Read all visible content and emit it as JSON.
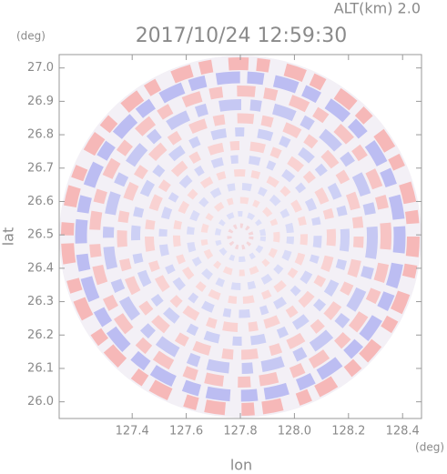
{
  "chart_data": {
    "type": "radar-ppi",
    "title": "2017/10/24 12:59:30",
    "annotation": "ALT(km) 2.0",
    "x_label": "lon",
    "x_unit": "(deg)",
    "y_label": "lat",
    "y_unit": "(deg)",
    "xlim": [
      127.13,
      128.47
    ],
    "xticks": [
      127.4,
      127.6,
      127.8,
      {
        "value": 128.0,
        "label": "128.0"
      },
      128.2,
      128.4
    ],
    "ylim": [
      25.95,
      27.04
    ],
    "yticks": [
      {
        "value": 26.0,
        "label": "26.0"
      },
      26.1,
      26.2,
      26.3,
      26.4,
      26.5,
      26.6,
      26.7,
      26.8,
      26.9,
      {
        "value": 27.0,
        "label": "27.0"
      }
    ]
  }
}
